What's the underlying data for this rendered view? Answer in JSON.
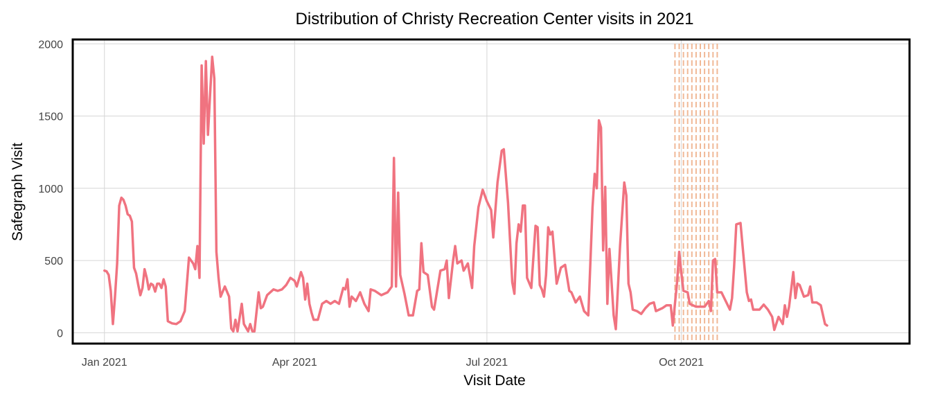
{
  "chart_data": {
    "type": "line",
    "title": "Distribution of  Christy Recreation Center visits in 2021",
    "xlabel": "Visit Date",
    "ylabel": "Safegraph Visit",
    "x_ticks": [
      {
        "date": "2021-01-01",
        "label": "Jan 2021"
      },
      {
        "date": "2021-04-01",
        "label": "Apr 2021"
      },
      {
        "date": "2021-07-01",
        "label": "Jul 2021"
      },
      {
        "date": "2021-10-01",
        "label": "Oct 2021"
      }
    ],
    "y_ticks": [
      0,
      500,
      1000,
      1500,
      2000
    ],
    "xlim": [
      "2020-12-17",
      "2022-01-17"
    ],
    "ylim": [
      -75,
      2030
    ],
    "grid": true,
    "line_color": "#f07380",
    "marker_line_color": "#f0b896",
    "marker_dates": [
      "2021-09-28",
      "2021-09-30",
      "2021-10-02",
      "2021-10-04",
      "2021-10-06",
      "2021-10-08",
      "2021-10-10",
      "2021-10-12",
      "2021-10-14",
      "2021-10-16",
      "2021-10-18"
    ],
    "series": [
      {
        "points": [
          [
            "2021-01-01",
            430
          ],
          [
            "2021-01-02",
            425
          ],
          [
            "2021-01-03",
            400
          ],
          [
            "2021-01-04",
            290
          ],
          [
            "2021-01-05",
            60
          ],
          [
            "2021-01-06",
            250
          ],
          [
            "2021-01-07",
            480
          ],
          [
            "2021-01-08",
            880
          ],
          [
            "2021-01-09",
            935
          ],
          [
            "2021-01-10",
            920
          ],
          [
            "2021-01-11",
            880
          ],
          [
            "2021-01-12",
            820
          ],
          [
            "2021-01-13",
            810
          ],
          [
            "2021-01-14",
            770
          ],
          [
            "2021-01-15",
            450
          ],
          [
            "2021-01-16",
            410
          ],
          [
            "2021-01-17",
            330
          ],
          [
            "2021-01-18",
            260
          ],
          [
            "2021-01-19",
            310
          ],
          [
            "2021-01-20",
            440
          ],
          [
            "2021-01-21",
            380
          ],
          [
            "2021-01-22",
            300
          ],
          [
            "2021-01-23",
            340
          ],
          [
            "2021-01-24",
            330
          ],
          [
            "2021-01-25",
            285
          ],
          [
            "2021-01-26",
            340
          ],
          [
            "2021-01-27",
            340
          ],
          [
            "2021-01-28",
            310
          ],
          [
            "2021-01-29",
            370
          ],
          [
            "2021-01-30",
            320
          ],
          [
            "2021-01-31",
            80
          ],
          [
            "2021-02-02",
            65
          ],
          [
            "2021-02-04",
            60
          ],
          [
            "2021-02-06",
            80
          ],
          [
            "2021-02-08",
            150
          ],
          [
            "2021-02-10",
            520
          ],
          [
            "2021-02-12",
            480
          ],
          [
            "2021-02-13",
            440
          ],
          [
            "2021-02-14",
            600
          ],
          [
            "2021-02-15",
            380
          ],
          [
            "2021-02-16",
            1850
          ],
          [
            "2021-02-17",
            1310
          ],
          [
            "2021-02-18",
            1880
          ],
          [
            "2021-02-19",
            1370
          ],
          [
            "2021-02-20",
            1650
          ],
          [
            "2021-02-21",
            1910
          ],
          [
            "2021-02-22",
            1760
          ],
          [
            "2021-02-23",
            560
          ],
          [
            "2021-02-24",
            380
          ],
          [
            "2021-02-25",
            250
          ],
          [
            "2021-02-27",
            320
          ],
          [
            "2021-03-01",
            250
          ],
          [
            "2021-03-02",
            30
          ],
          [
            "2021-03-03",
            10
          ],
          [
            "2021-03-04",
            90
          ],
          [
            "2021-03-05",
            10
          ],
          [
            "2021-03-07",
            200
          ],
          [
            "2021-03-08",
            60
          ],
          [
            "2021-03-10",
            10
          ],
          [
            "2021-03-11",
            60
          ],
          [
            "2021-03-12",
            10
          ],
          [
            "2021-03-13",
            10
          ],
          [
            "2021-03-15",
            280
          ],
          [
            "2021-03-16",
            170
          ],
          [
            "2021-03-17",
            180
          ],
          [
            "2021-03-19",
            260
          ],
          [
            "2021-03-22",
            300
          ],
          [
            "2021-03-24",
            290
          ],
          [
            "2021-03-26",
            300
          ],
          [
            "2021-03-28",
            330
          ],
          [
            "2021-03-30",
            380
          ],
          [
            "2021-04-01",
            360
          ],
          [
            "2021-04-02",
            320
          ],
          [
            "2021-04-04",
            420
          ],
          [
            "2021-04-05",
            380
          ],
          [
            "2021-04-06",
            230
          ],
          [
            "2021-04-07",
            340
          ],
          [
            "2021-04-08",
            200
          ],
          [
            "2021-04-09",
            140
          ],
          [
            "2021-04-10",
            90
          ],
          [
            "2021-04-12",
            90
          ],
          [
            "2021-04-14",
            200
          ],
          [
            "2021-04-16",
            220
          ],
          [
            "2021-04-18",
            200
          ],
          [
            "2021-04-20",
            220
          ],
          [
            "2021-04-22",
            200
          ],
          [
            "2021-04-24",
            310
          ],
          [
            "2021-04-25",
            300
          ],
          [
            "2021-04-26",
            370
          ],
          [
            "2021-04-27",
            180
          ],
          [
            "2021-04-28",
            250
          ],
          [
            "2021-04-30",
            220
          ],
          [
            "2021-05-02",
            280
          ],
          [
            "2021-05-04",
            200
          ],
          [
            "2021-05-06",
            150
          ],
          [
            "2021-05-07",
            300
          ],
          [
            "2021-05-09",
            290
          ],
          [
            "2021-05-12",
            260
          ],
          [
            "2021-05-15",
            280
          ],
          [
            "2021-05-17",
            320
          ],
          [
            "2021-05-18",
            1210
          ],
          [
            "2021-05-19",
            320
          ],
          [
            "2021-05-20",
            970
          ],
          [
            "2021-05-21",
            400
          ],
          [
            "2021-05-23",
            270
          ],
          [
            "2021-05-25",
            120
          ],
          [
            "2021-05-27",
            120
          ],
          [
            "2021-05-29",
            290
          ],
          [
            "2021-05-30",
            300
          ],
          [
            "2021-05-31",
            620
          ],
          [
            "2021-06-01",
            420
          ],
          [
            "2021-06-03",
            400
          ],
          [
            "2021-06-05",
            180
          ],
          [
            "2021-06-06",
            160
          ],
          [
            "2021-06-07",
            250
          ],
          [
            "2021-06-09",
            430
          ],
          [
            "2021-06-11",
            440
          ],
          [
            "2021-06-12",
            500
          ],
          [
            "2021-06-13",
            240
          ],
          [
            "2021-06-15",
            500
          ],
          [
            "2021-06-16",
            600
          ],
          [
            "2021-06-17",
            480
          ],
          [
            "2021-06-19",
            500
          ],
          [
            "2021-06-20",
            430
          ],
          [
            "2021-06-22",
            480
          ],
          [
            "2021-06-24",
            310
          ],
          [
            "2021-06-25",
            600
          ],
          [
            "2021-06-27",
            870
          ],
          [
            "2021-06-29",
            990
          ],
          [
            "2021-07-01",
            910
          ],
          [
            "2021-07-03",
            850
          ],
          [
            "2021-07-04",
            660
          ],
          [
            "2021-07-06",
            1040
          ],
          [
            "2021-07-08",
            1260
          ],
          [
            "2021-07-09",
            1270
          ],
          [
            "2021-07-11",
            900
          ],
          [
            "2021-07-13",
            350
          ],
          [
            "2021-07-14",
            270
          ],
          [
            "2021-07-15",
            620
          ],
          [
            "2021-07-16",
            750
          ],
          [
            "2021-07-17",
            700
          ],
          [
            "2021-07-18",
            880
          ],
          [
            "2021-07-19",
            880
          ],
          [
            "2021-07-20",
            380
          ],
          [
            "2021-07-22",
            310
          ],
          [
            "2021-07-24",
            740
          ],
          [
            "2021-07-25",
            730
          ],
          [
            "2021-07-26",
            330
          ],
          [
            "2021-07-27",
            300
          ],
          [
            "2021-07-28",
            250
          ],
          [
            "2021-07-29",
            400
          ],
          [
            "2021-07-30",
            730
          ],
          [
            "2021-07-31",
            680
          ],
          [
            "2021-08-01",
            700
          ],
          [
            "2021-08-03",
            340
          ],
          [
            "2021-08-05",
            450
          ],
          [
            "2021-08-07",
            470
          ],
          [
            "2021-08-09",
            290
          ],
          [
            "2021-08-10",
            280
          ],
          [
            "2021-08-12",
            210
          ],
          [
            "2021-08-14",
            250
          ],
          [
            "2021-08-16",
            150
          ],
          [
            "2021-08-18",
            120
          ],
          [
            "2021-08-20",
            870
          ],
          [
            "2021-08-21",
            1100
          ],
          [
            "2021-08-22",
            1000
          ],
          [
            "2021-08-23",
            1470
          ],
          [
            "2021-08-24",
            1420
          ],
          [
            "2021-08-25",
            570
          ],
          [
            "2021-08-26",
            1010
          ],
          [
            "2021-08-27",
            200
          ],
          [
            "2021-08-28",
            580
          ],
          [
            "2021-08-30",
            120
          ],
          [
            "2021-08-31",
            25
          ],
          [
            "2021-09-02",
            600
          ],
          [
            "2021-09-04",
            1040
          ],
          [
            "2021-09-05",
            950
          ],
          [
            "2021-09-06",
            340
          ],
          [
            "2021-09-07",
            280
          ],
          [
            "2021-09-08",
            160
          ],
          [
            "2021-09-10",
            150
          ],
          [
            "2021-09-12",
            130
          ],
          [
            "2021-09-14",
            170
          ],
          [
            "2021-09-16",
            200
          ],
          [
            "2021-09-18",
            210
          ],
          [
            "2021-09-19",
            150
          ],
          [
            "2021-09-22",
            170
          ],
          [
            "2021-09-24",
            190
          ],
          [
            "2021-09-26",
            190
          ],
          [
            "2021-09-27",
            50
          ],
          [
            "2021-09-29",
            350
          ],
          [
            "2021-09-30",
            560
          ],
          [
            "2021-10-01",
            420
          ],
          [
            "2021-10-02",
            290
          ],
          [
            "2021-10-04",
            280
          ],
          [
            "2021-10-05",
            200
          ],
          [
            "2021-10-08",
            180
          ],
          [
            "2021-10-12",
            180
          ],
          [
            "2021-10-14",
            220
          ],
          [
            "2021-10-15",
            150
          ],
          [
            "2021-10-16",
            500
          ],
          [
            "2021-10-17",
            510
          ],
          [
            "2021-10-18",
            280
          ],
          [
            "2021-10-20",
            280
          ],
          [
            "2021-10-22",
            220
          ],
          [
            "2021-10-24",
            160
          ],
          [
            "2021-10-25",
            240
          ],
          [
            "2021-10-26",
            460
          ],
          [
            "2021-10-27",
            750
          ],
          [
            "2021-10-29",
            760
          ],
          [
            "2021-10-30",
            600
          ],
          [
            "2021-11-01",
            280
          ],
          [
            "2021-11-02",
            220
          ],
          [
            "2021-11-03",
            230
          ],
          [
            "2021-11-04",
            160
          ],
          [
            "2021-11-07",
            160
          ],
          [
            "2021-11-09",
            195
          ],
          [
            "2021-11-11",
            160
          ],
          [
            "2021-11-13",
            110
          ],
          [
            "2021-11-14",
            20
          ],
          [
            "2021-11-16",
            110
          ],
          [
            "2021-11-18",
            60
          ],
          [
            "2021-11-19",
            190
          ],
          [
            "2021-11-20",
            110
          ],
          [
            "2021-11-21",
            180
          ],
          [
            "2021-11-23",
            420
          ],
          [
            "2021-11-24",
            240
          ],
          [
            "2021-11-25",
            340
          ],
          [
            "2021-11-26",
            330
          ],
          [
            "2021-11-28",
            250
          ],
          [
            "2021-11-30",
            260
          ],
          [
            "2021-12-01",
            320
          ],
          [
            "2021-12-02",
            210
          ],
          [
            "2021-12-04",
            210
          ],
          [
            "2021-12-06",
            190
          ],
          [
            "2021-12-08",
            60
          ],
          [
            "2021-12-09",
            50
          ]
        ]
      }
    ]
  }
}
